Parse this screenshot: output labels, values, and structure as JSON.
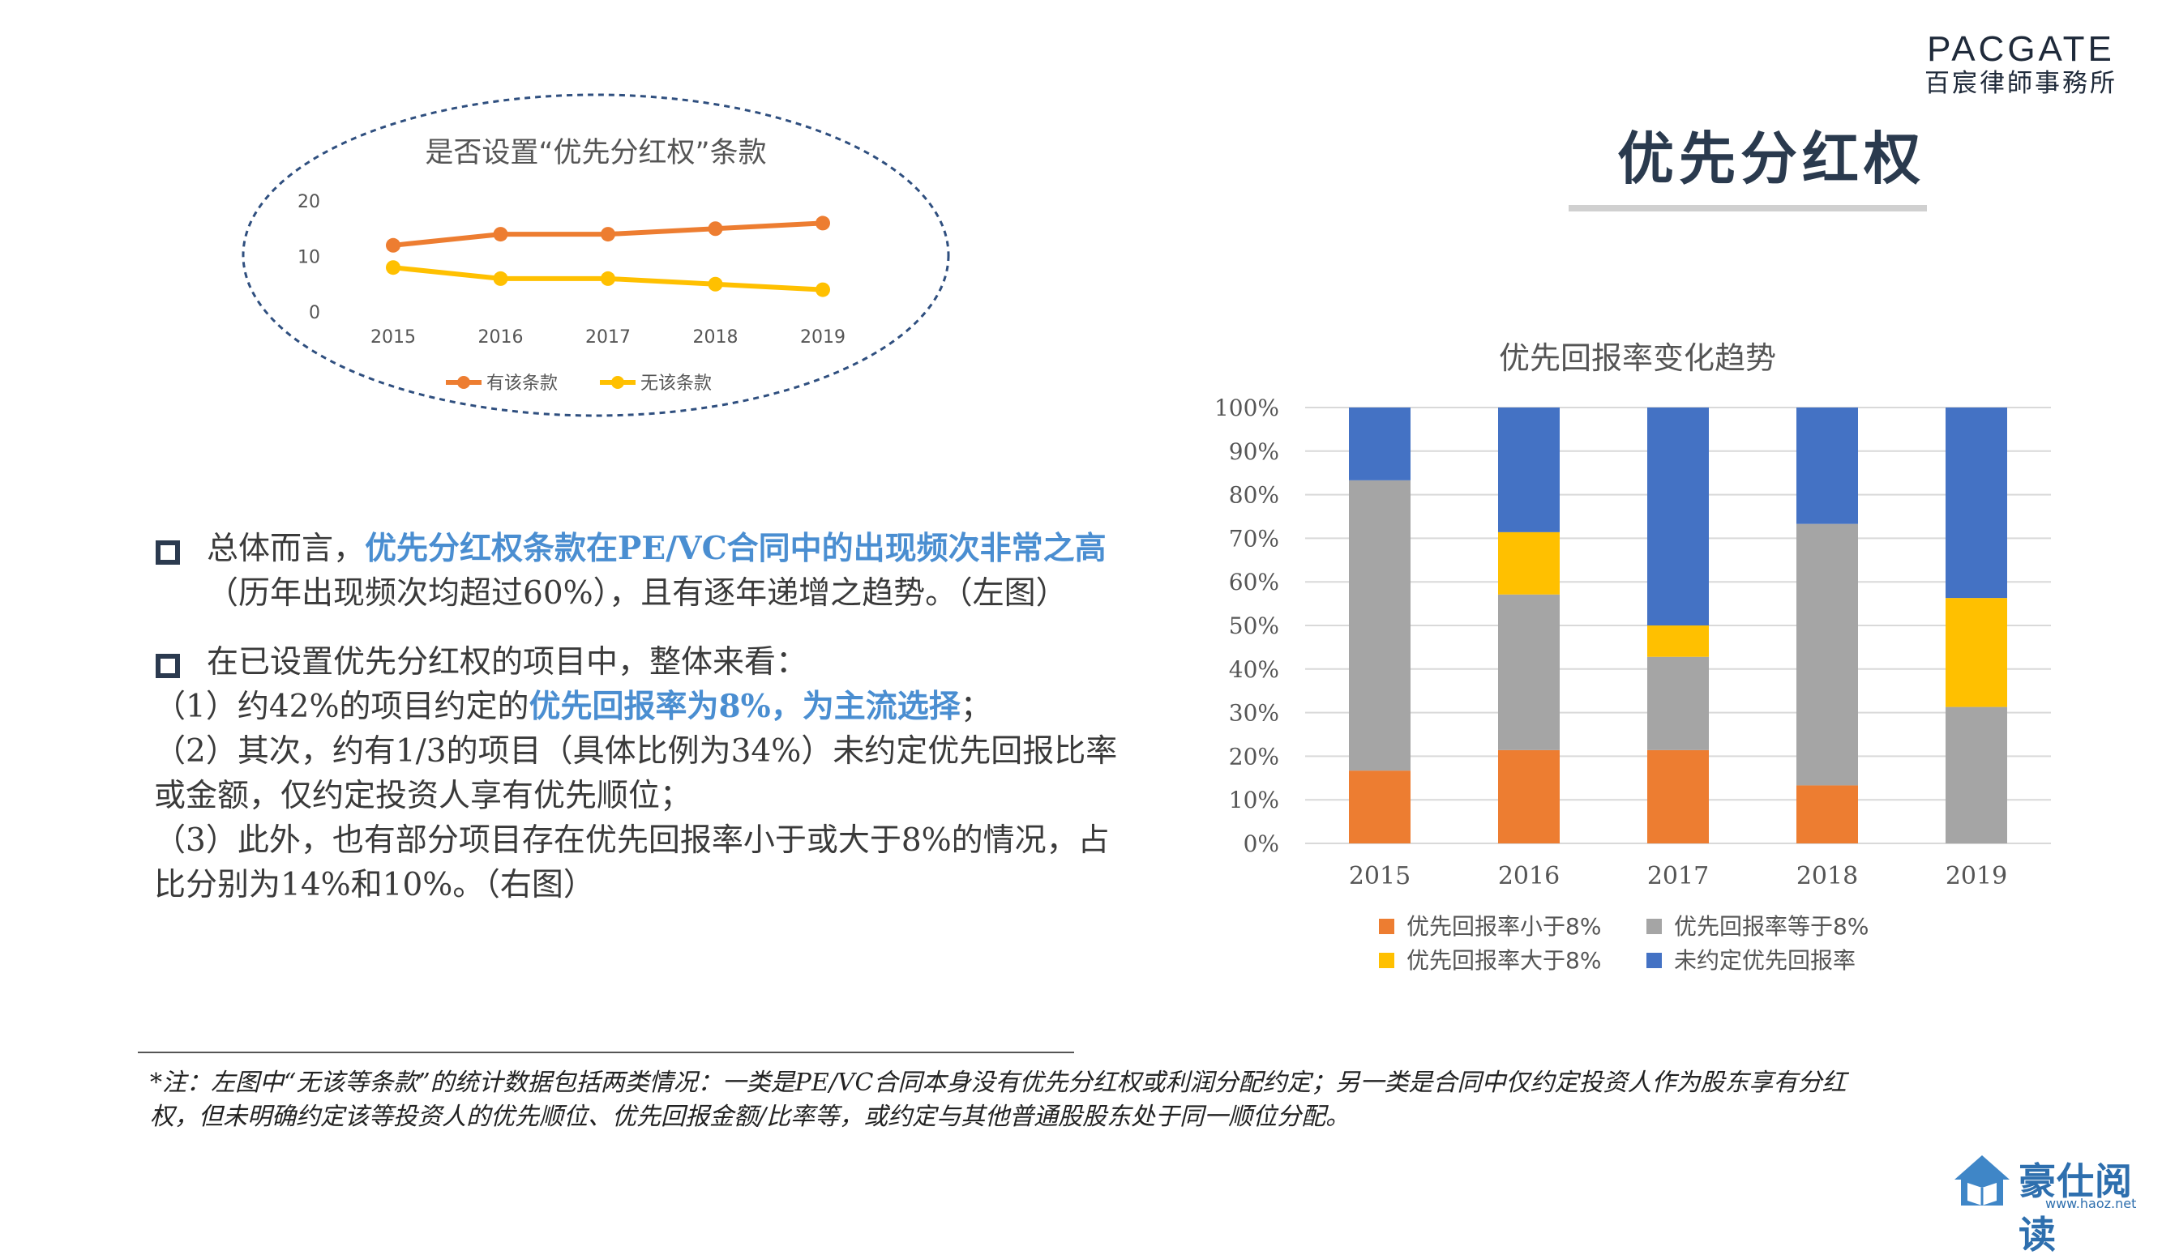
{
  "logo": {
    "en": "PACGATE",
    "cn": "百宸律師事務所"
  },
  "slide_title": "优先分红权",
  "bullets": {
    "b1_pre": "总体而言，",
    "b1_hl": "优先分红权条款在PE/VC合同中的出现频次非常之高",
    "b1_line2": "（历年出现频次均超过60%），且有逐年递增之趋势。（左图）",
    "b2_line1": "在已设置优先分红权的项目中，整体来看：",
    "b2_l2_pre": "（1）约42%的项目约定的",
    "b2_l2_hl": "优先回报率为8%，为主流选择",
    "b2_l2_post": "；",
    "b2_line3": "（2）其次，约有1/3的项目（具体比例为34%）未约定优先回报比率",
    "b2_line4": "或金额，仅约定投资人享有优先顺位；",
    "b2_line5": "（3）此外，也有部分项目存在优先回报率小于或大于8%的情况，占",
    "b2_line6": "比分别为14%和10%。（右图）"
  },
  "footnote": {
    "line1": "*注：左图中“无该等条款”的统计数据包括两类情况：一类是PE/VC合同本身没有优先分红权或利润分配约定；另一类是合同中仅约定投资人作为股东享有分红",
    "line2": "权，但未明确约定该等投资人的优先顺位、优先回报金额/比率等，或约定与其他普通股股东处于同一顺位分配。"
  },
  "watermark": {
    "text": "豪仕阅读",
    "url": "www.haoz.net"
  },
  "colors": {
    "orange": "#ed7d31",
    "yellow": "#ffc000",
    "gray": "#a5a5a5",
    "blue": "#4472c4",
    "ellipse": "#2f4f7f"
  },
  "chart_data": [
    {
      "type": "line",
      "title": "是否设置“优先分红权”条款",
      "x": [
        "2015",
        "2016",
        "2017",
        "2018",
        "2019"
      ],
      "ylim": [
        0,
        20
      ],
      "yticks": [
        "0",
        "10",
        "20"
      ],
      "grid": false,
      "legend": "bottom",
      "series": [
        {
          "name": "有该条款",
          "values": [
            12,
            14,
            14,
            15,
            16
          ],
          "color": "#ed7d31"
        },
        {
          "name": "无该条款",
          "values": [
            8,
            6,
            6,
            5,
            4
          ],
          "color": "#ffc000"
        }
      ]
    },
    {
      "type": "bar",
      "stacked": true,
      "title": "优先回报率变化趋势",
      "categories": [
        "2015",
        "2016",
        "2017",
        "2018",
        "2019"
      ],
      "ylim": [
        0,
        100
      ],
      "yticks": [
        "0%",
        "10%",
        "20%",
        "30%",
        "40%",
        "50%",
        "60%",
        "70%",
        "80%",
        "90%",
        "100%"
      ],
      "grid": true,
      "legend": "bottom",
      "series": [
        {
          "name": "优先回报率小于8%",
          "values": [
            16.7,
            21.4,
            21.4,
            13.3,
            0
          ],
          "color": "#ed7d31"
        },
        {
          "name": "优先回报率等于8%",
          "values": [
            66.6,
            35.7,
            21.4,
            60.0,
            31.3
          ],
          "color": "#a5a5a5"
        },
        {
          "name": "优先回报率大于8%",
          "values": [
            0,
            14.3,
            7.2,
            0,
            25.0
          ],
          "color": "#ffc000"
        },
        {
          "name": "未约定优先回报率",
          "values": [
            16.7,
            28.6,
            50.0,
            26.7,
            43.7
          ],
          "color": "#4472c4"
        }
      ]
    }
  ]
}
